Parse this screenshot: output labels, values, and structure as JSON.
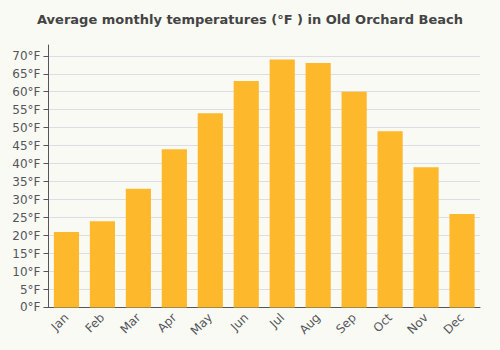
{
  "chart_data": {
    "type": "bar",
    "title": "Average monthly temperatures (°F ) in Old Orchard Beach",
    "categories": [
      "Jan",
      "Feb",
      "Mar",
      "Apr",
      "May",
      "Jun",
      "Jul",
      "Aug",
      "Sep",
      "Oct",
      "Nov",
      "Dec"
    ],
    "values": [
      21,
      24,
      33,
      44,
      54,
      63,
      69,
      68,
      60,
      49,
      39,
      26
    ],
    "color": "#FDB82C",
    "ylim": [
      0,
      73
    ],
    "yticks": [
      {
        "value": 0,
        "label": "0°F"
      },
      {
        "value": 5,
        "label": "5°F"
      },
      {
        "value": 10,
        "label": "10°F"
      },
      {
        "value": 15,
        "label": "15°F"
      },
      {
        "value": 20,
        "label": "20°F"
      },
      {
        "value": 25,
        "label": "25°F"
      },
      {
        "value": 30,
        "label": "30°F"
      },
      {
        "value": 35,
        "label": "35°F"
      },
      {
        "value": 40,
        "label": "40°F"
      },
      {
        "value": 45,
        "label": "45°F"
      },
      {
        "value": 50,
        "label": "50°F"
      },
      {
        "value": 55,
        "label": "55°F"
      },
      {
        "value": 60,
        "label": "60°F"
      },
      {
        "value": 65,
        "label": "65°F"
      },
      {
        "value": 70,
        "label": "70°F"
      }
    ],
    "grid": true
  }
}
